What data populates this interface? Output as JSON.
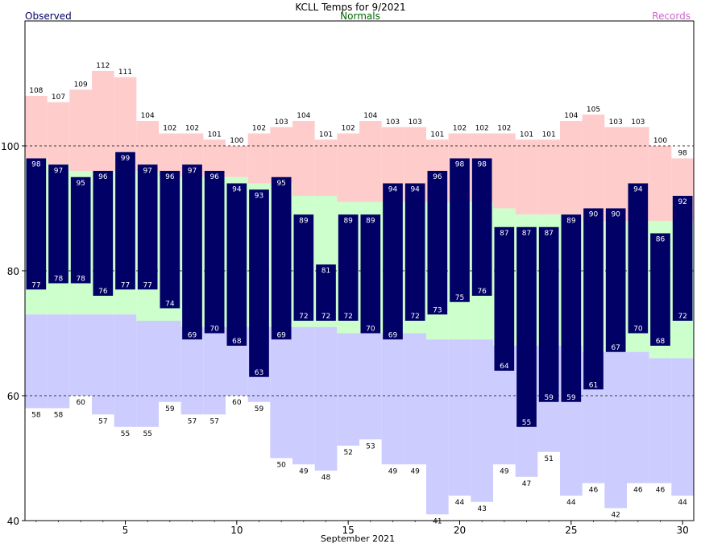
{
  "chart_data": {
    "type": "bar",
    "title": "KCLL Temps for 9/2021",
    "xlabel": "September 2021",
    "legend": {
      "observed": "Observed",
      "normals": "Normals",
      "records": "Records"
    },
    "colors": {
      "observed": "#000066",
      "normals": "#ccffcc",
      "records_high": "#ffcccc",
      "records_low": "#ccccff",
      "observed_label": "#000066",
      "normals_label": "#006600",
      "records_label": "#cc66cc"
    },
    "ylim": [
      40,
      120
    ],
    "y_ticks": [
      40,
      60,
      80,
      100
    ],
    "x_ticks": [
      5,
      10,
      15,
      20,
      25,
      30
    ],
    "grid_lines": [
      60,
      80,
      100
    ],
    "days": [
      1,
      2,
      3,
      4,
      5,
      6,
      7,
      8,
      9,
      10,
      11,
      12,
      13,
      14,
      15,
      16,
      17,
      18,
      19,
      20,
      21,
      22,
      23,
      24,
      25,
      26,
      27,
      28,
      29,
      30
    ],
    "series": [
      {
        "name": "Observed",
        "key": "obs_high",
        "values": [
          98,
          97,
          95,
          96,
          99,
          97,
          96,
          97,
          96,
          94,
          93,
          95,
          89,
          81,
          89,
          89,
          94,
          94,
          96,
          98,
          98,
          87,
          87,
          87,
          89,
          90,
          90,
          94,
          86,
          92
        ]
      },
      {
        "name": "Observed",
        "key": "obs_low",
        "values": [
          77,
          78,
          78,
          76,
          77,
          77,
          74,
          69,
          70,
          68,
          63,
          69,
          72,
          72,
          72,
          70,
          69,
          72,
          73,
          75,
          76,
          64,
          55,
          59,
          59,
          61,
          67,
          70,
          68,
          72
        ]
      },
      {
        "name": "Records",
        "key": "rec_high",
        "values": [
          108,
          107,
          109,
          112,
          111,
          104,
          102,
          102,
          101,
          100,
          102,
          103,
          104,
          101,
          102,
          104,
          103,
          103,
          101,
          102,
          102,
          102,
          101,
          101,
          104,
          105,
          103,
          103,
          100,
          98
        ]
      },
      {
        "name": "Records",
        "key": "rec_low",
        "values": [
          58,
          58,
          60,
          57,
          55,
          55,
          59,
          57,
          57,
          60,
          59,
          50,
          49,
          48,
          52,
          53,
          49,
          49,
          41,
          44,
          43,
          49,
          47,
          51,
          44,
          46,
          42,
          46,
          46,
          44
        ]
      },
      {
        "name": "Normals",
        "key": "norm_high",
        "values": [
          98,
          97,
          96,
          96,
          96,
          96,
          95,
          95,
          95,
          95,
          94,
          94,
          92,
          92,
          91,
          91,
          91,
          91,
          91,
          91,
          91,
          90,
          89,
          89,
          89,
          88,
          88,
          88,
          88,
          88
        ]
      },
      {
        "name": "Normals",
        "key": "norm_low",
        "values": [
          73,
          73,
          73,
          73,
          73,
          72,
          72,
          71,
          71,
          71,
          71,
          71,
          71,
          71,
          70,
          70,
          70,
          70,
          69,
          69,
          69,
          68,
          68,
          68,
          68,
          67,
          67,
          67,
          66,
          66
        ]
      }
    ]
  }
}
